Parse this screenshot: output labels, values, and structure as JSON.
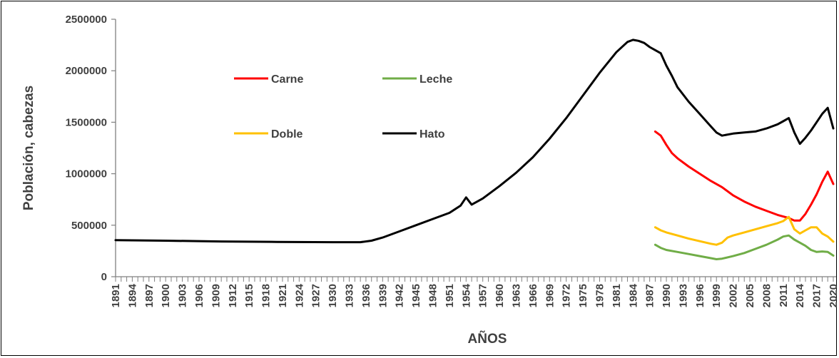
{
  "chart_data": {
    "type": "line",
    "xlabel": "AÑOS",
    "ylabel": "Población, cabezas",
    "xlim": [
      1891,
      2020
    ],
    "ylim": [
      0,
      2500000
    ],
    "y_ticks": [
      "0",
      "500000",
      "1000000",
      "1500000",
      "2000000",
      "2500000"
    ],
    "x_ticks": [
      "1891",
      "1894",
      "1897",
      "1900",
      "1903",
      "1906",
      "1909",
      "1912",
      "1915",
      "1918",
      "1921",
      "1924",
      "1927",
      "1930",
      "1933",
      "1936",
      "1939",
      "1942",
      "1945",
      "1948",
      "1951",
      "1954",
      "1957",
      "1960",
      "1963",
      "1966",
      "1969",
      "1972",
      "1975",
      "1978",
      "1981",
      "1984",
      "1987",
      "1990",
      "1993",
      "1996",
      "1999",
      "2002",
      "2005",
      "2008",
      "2011",
      "2014",
      "2017",
      "2020"
    ],
    "grid": false,
    "legend_placement": "upper-left inside plot",
    "series": [
      {
        "name": "Carne",
        "color": "#ff0000",
        "points": [
          [
            1988,
            1410000
          ],
          [
            1989,
            1370000
          ],
          [
            1990,
            1280000
          ],
          [
            1991,
            1200000
          ],
          [
            1992,
            1150000
          ],
          [
            1994,
            1070000
          ],
          [
            1996,
            1000000
          ],
          [
            1998,
            930000
          ],
          [
            2000,
            870000
          ],
          [
            2002,
            790000
          ],
          [
            2004,
            730000
          ],
          [
            2006,
            680000
          ],
          [
            2008,
            640000
          ],
          [
            2010,
            600000
          ],
          [
            2012,
            570000
          ],
          [
            2013,
            545000
          ],
          [
            2014,
            545000
          ],
          [
            2015,
            610000
          ],
          [
            2016,
            700000
          ],
          [
            2017,
            800000
          ],
          [
            2018,
            920000
          ],
          [
            2019,
            1020000
          ],
          [
            2020,
            900000
          ]
        ]
      },
      {
        "name": "Leche",
        "color": "#70ad47",
        "points": [
          [
            1988,
            310000
          ],
          [
            1989,
            280000
          ],
          [
            1990,
            260000
          ],
          [
            1992,
            240000
          ],
          [
            1994,
            220000
          ],
          [
            1996,
            200000
          ],
          [
            1998,
            180000
          ],
          [
            1999,
            170000
          ],
          [
            2000,
            175000
          ],
          [
            2002,
            200000
          ],
          [
            2004,
            230000
          ],
          [
            2006,
            270000
          ],
          [
            2008,
            310000
          ],
          [
            2010,
            360000
          ],
          [
            2011,
            390000
          ],
          [
            2012,
            400000
          ],
          [
            2013,
            360000
          ],
          [
            2014,
            330000
          ],
          [
            2015,
            300000
          ],
          [
            2016,
            260000
          ],
          [
            2017,
            240000
          ],
          [
            2018,
            245000
          ],
          [
            2019,
            240000
          ],
          [
            2020,
            205000
          ]
        ]
      },
      {
        "name": "Doble",
        "color": "#ffc000",
        "points": [
          [
            1988,
            480000
          ],
          [
            1989,
            450000
          ],
          [
            1990,
            430000
          ],
          [
            1992,
            400000
          ],
          [
            1994,
            370000
          ],
          [
            1996,
            345000
          ],
          [
            1998,
            320000
          ],
          [
            1999,
            310000
          ],
          [
            2000,
            330000
          ],
          [
            2001,
            380000
          ],
          [
            2002,
            400000
          ],
          [
            2004,
            430000
          ],
          [
            2006,
            460000
          ],
          [
            2008,
            490000
          ],
          [
            2010,
            520000
          ],
          [
            2011,
            540000
          ],
          [
            2012,
            580000
          ],
          [
            2013,
            460000
          ],
          [
            2014,
            420000
          ],
          [
            2015,
            450000
          ],
          [
            2016,
            480000
          ],
          [
            2017,
            480000
          ],
          [
            2018,
            420000
          ],
          [
            2019,
            390000
          ],
          [
            2020,
            340000
          ]
        ]
      },
      {
        "name": "Hato",
        "color": "#000000",
        "points": [
          [
            1891,
            355000
          ],
          [
            1900,
            350000
          ],
          [
            1910,
            342000
          ],
          [
            1920,
            338000
          ],
          [
            1930,
            335000
          ],
          [
            1935,
            335000
          ],
          [
            1937,
            350000
          ],
          [
            1939,
            380000
          ],
          [
            1942,
            440000
          ],
          [
            1945,
            500000
          ],
          [
            1948,
            560000
          ],
          [
            1951,
            620000
          ],
          [
            1953,
            690000
          ],
          [
            1954,
            770000
          ],
          [
            1955,
            700000
          ],
          [
            1957,
            760000
          ],
          [
            1960,
            880000
          ],
          [
            1963,
            1010000
          ],
          [
            1966,
            1160000
          ],
          [
            1969,
            1340000
          ],
          [
            1972,
            1540000
          ],
          [
            1975,
            1760000
          ],
          [
            1978,
            1980000
          ],
          [
            1981,
            2180000
          ],
          [
            1983,
            2280000
          ],
          [
            1984,
            2300000
          ],
          [
            1985,
            2290000
          ],
          [
            1986,
            2270000
          ],
          [
            1987,
            2230000
          ],
          [
            1988,
            2200000
          ],
          [
            1989,
            2170000
          ],
          [
            1990,
            2050000
          ],
          [
            1991,
            1950000
          ],
          [
            1992,
            1840000
          ],
          [
            1994,
            1700000
          ],
          [
            1996,
            1580000
          ],
          [
            1998,
            1460000
          ],
          [
            1999,
            1400000
          ],
          [
            2000,
            1370000
          ],
          [
            2002,
            1390000
          ],
          [
            2004,
            1400000
          ],
          [
            2006,
            1410000
          ],
          [
            2008,
            1440000
          ],
          [
            2010,
            1480000
          ],
          [
            2011,
            1510000
          ],
          [
            2012,
            1540000
          ],
          [
            2013,
            1400000
          ],
          [
            2014,
            1290000
          ],
          [
            2015,
            1350000
          ],
          [
            2016,
            1420000
          ],
          [
            2017,
            1500000
          ],
          [
            2018,
            1580000
          ],
          [
            2019,
            1640000
          ],
          [
            2020,
            1440000
          ]
        ]
      }
    ]
  }
}
